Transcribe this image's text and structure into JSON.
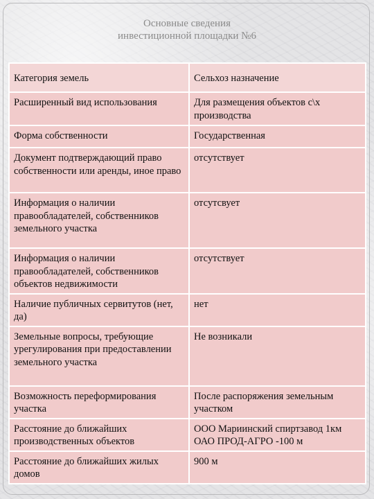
{
  "title": {
    "line1": "Основные сведения",
    "line2": "инвестиционной площадки №6"
  },
  "rows": [
    {
      "label": "Категория земель",
      "value": "Сельхоз назначение"
    },
    {
      "label": "Расширенный вид использования",
      "value": "Для размещения объектов с\\х производства"
    },
    {
      "label": "Форма собственности",
      "value": "Государственная"
    },
    {
      "label": "Документ подтверждающий право собственности или аренды, иное право",
      "value": "отсутствует"
    },
    {
      "label": "Информация о наличии правообладателей, собственников земельного участка",
      "value": "отсутсвует"
    },
    {
      "label": "Информация о наличии правообладателей, собственников объектов недвижимости",
      "value": "отсутствует"
    },
    {
      "label": "Наличие публичных сервитутов (нет, да)",
      "value": "нет"
    },
    {
      "label": "Земельные вопросы, требующие урегулирования при предоставлении земельного участка",
      "value": "Не возникали"
    },
    {
      "label": "Возможность переформирования участка",
      "value": "После распоряжения земельным участком"
    },
    {
      "label": "Расстояние до ближайших производственных объектов",
      "value": "ООО Мариинский спиртзавод 1км ОАО ПРОД-АГРО -100 м"
    },
    {
      "label": "Расстояние до ближайших жилых домов",
      "value": "900 м"
    }
  ]
}
